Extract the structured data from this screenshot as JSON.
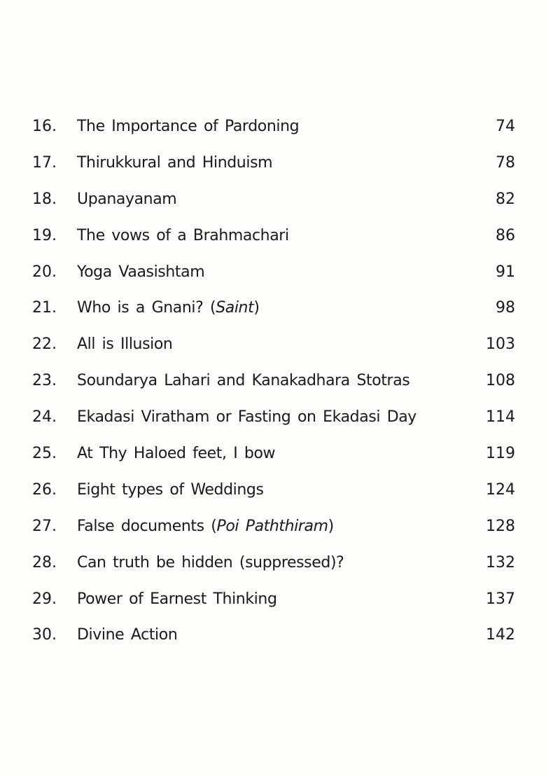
{
  "toc": [
    {
      "number": "16.",
      "title": [
        {
          "text": "The Importance of Pardoning"
        }
      ],
      "page": "74"
    },
    {
      "number": "17.",
      "title": [
        {
          "text": "Thirukkural and Hinduism"
        }
      ],
      "page": "78"
    },
    {
      "number": "18.",
      "title": [
        {
          "text": "Upanayanam"
        }
      ],
      "page": "82"
    },
    {
      "number": "19.",
      "title": [
        {
          "text": "The vows of a Brahmachari"
        }
      ],
      "page": "86"
    },
    {
      "number": "20.",
      "title": [
        {
          "text": "Yoga Vaasishtam"
        }
      ],
      "page": "91"
    },
    {
      "number": "21.",
      "title": [
        {
          "text": "Who is a Gnani? ("
        },
        {
          "text": "Saint",
          "italic": true
        },
        {
          "text": ")"
        }
      ],
      "page": "98"
    },
    {
      "number": "22.",
      "title": [
        {
          "text": "All is Illusion"
        }
      ],
      "page": "103"
    },
    {
      "number": "23.",
      "title": [
        {
          "text": "Soundarya Lahari and Kanakadhara Stotras"
        }
      ],
      "page": "108"
    },
    {
      "number": "24.",
      "title": [
        {
          "text": "Ekadasi Viratham or Fasting on Ekadasi Day"
        }
      ],
      "page": "114"
    },
    {
      "number": "25.",
      "title": [
        {
          "text": "At Thy Haloed feet, I bow"
        }
      ],
      "page": "119"
    },
    {
      "number": "26.",
      "title": [
        {
          "text": "Eight types of Weddings"
        }
      ],
      "page": "124"
    },
    {
      "number": "27.",
      "title": [
        {
          "text": "False documents ("
        },
        {
          "text": "Poi Paththiram",
          "italic": true
        },
        {
          "text": ")"
        }
      ],
      "page": "128"
    },
    {
      "number": "28.",
      "title": [
        {
          "text": "Can truth be hidden (suppressed)?"
        }
      ],
      "page": "132"
    },
    {
      "number": "29.",
      "title": [
        {
          "text": "Power of Earnest Thinking"
        }
      ],
      "page": "137"
    },
    {
      "number": "30.",
      "title": [
        {
          "text": "Divine Action"
        }
      ],
      "page": "142"
    }
  ]
}
